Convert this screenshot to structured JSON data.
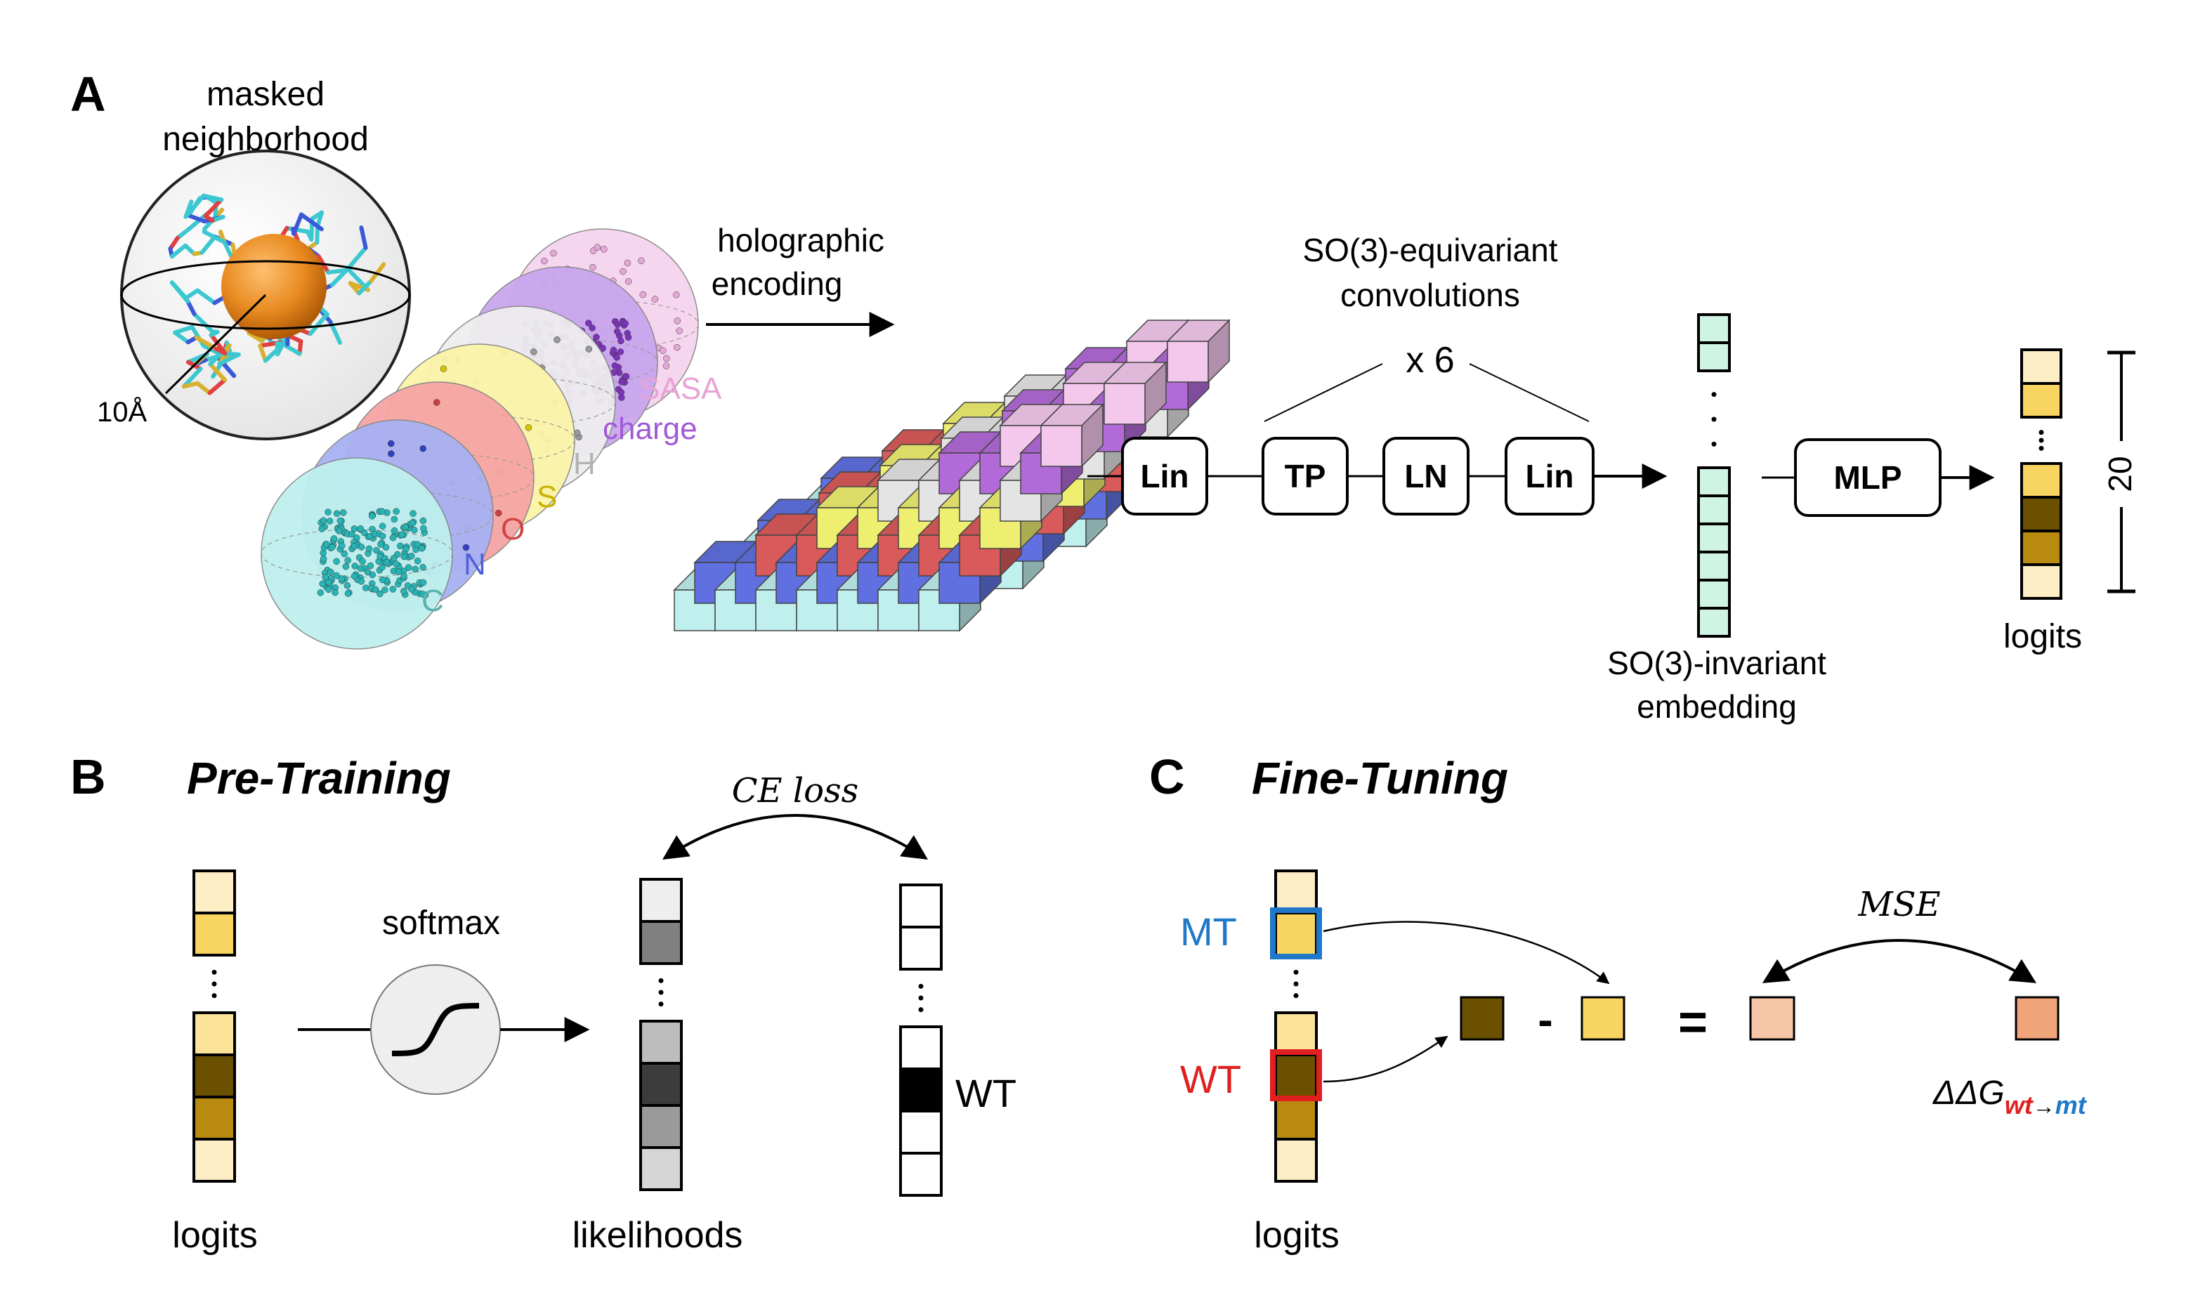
{
  "panel_a": {
    "letter": "A",
    "masked_line1": "masked",
    "masked_line2": "neighborhood",
    "radius_label": "10Å",
    "channels": [
      {
        "name": "SASA",
        "color": "#e8a3d6"
      },
      {
        "name": "charge",
        "color": "#a05ad6"
      },
      {
        "name": "H",
        "color": "#b3b3b3"
      },
      {
        "name": "S",
        "color": "#c8b400"
      },
      {
        "name": "O",
        "color": "#d04444"
      },
      {
        "name": "N",
        "color": "#5060d8"
      },
      {
        "name": "C",
        "color": "#5ab0b0"
      }
    ],
    "holo_line1": "holographic",
    "holo_line2": "encoding",
    "conv_line1": "SO(3)-equivariant",
    "conv_line2": "convolutions",
    "repeat": "x 6",
    "blocks": [
      "Lin",
      "TP",
      "LN",
      "Lin"
    ],
    "mlp": "MLP",
    "embed_line1": "SO(3)-invariant",
    "embed_line2": "embedding",
    "logits": "logits",
    "count": "20"
  },
  "panel_b": {
    "letter": "B",
    "title": "Pre-Training",
    "softmax": "softmax",
    "loss": "CE loss",
    "logits": "logits",
    "likelihoods": "likelihoods",
    "wt": "WT"
  },
  "panel_c": {
    "letter": "C",
    "title": "Fine-Tuning",
    "mt": "MT",
    "wt": "WT",
    "minus": "-",
    "equals": "=",
    "loss": "MSE",
    "logits": "logits",
    "ddg_base": "ΔΔG",
    "ddg_wt": "wt",
    "ddg_arrow": "→",
    "ddg_mt": "mt",
    "mt_color": "#1f78c8",
    "wt_color": "#e02020"
  }
}
